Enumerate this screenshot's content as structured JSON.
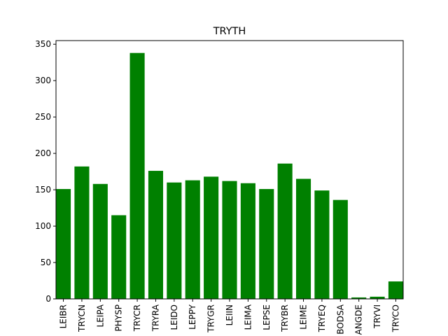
{
  "chart_data": {
    "type": "bar",
    "title": "TRYTH",
    "xlabel": "",
    "ylabel": "",
    "categories": [
      "LEIBR",
      "TRYCN",
      "LEIPA",
      "PHYSP",
      "TRYCR",
      "TRYRA",
      "LEIDO",
      "LEPPY",
      "TRYGR",
      "LEIIN",
      "LEIMA",
      "LEPSE",
      "TRYBR",
      "LEIME",
      "TRYEQ",
      "BODSA",
      "ANGDE",
      "TRYVI",
      "TRYCO"
    ],
    "values": [
      151,
      182,
      158,
      115,
      338,
      176,
      160,
      163,
      168,
      162,
      159,
      151,
      186,
      165,
      149,
      136,
      2,
      3,
      24
    ],
    "ylim": [
      0,
      355
    ],
    "yticks": [
      0,
      50,
      100,
      150,
      200,
      250,
      300,
      350
    ],
    "bar_color": "#008000",
    "grid": false
  }
}
